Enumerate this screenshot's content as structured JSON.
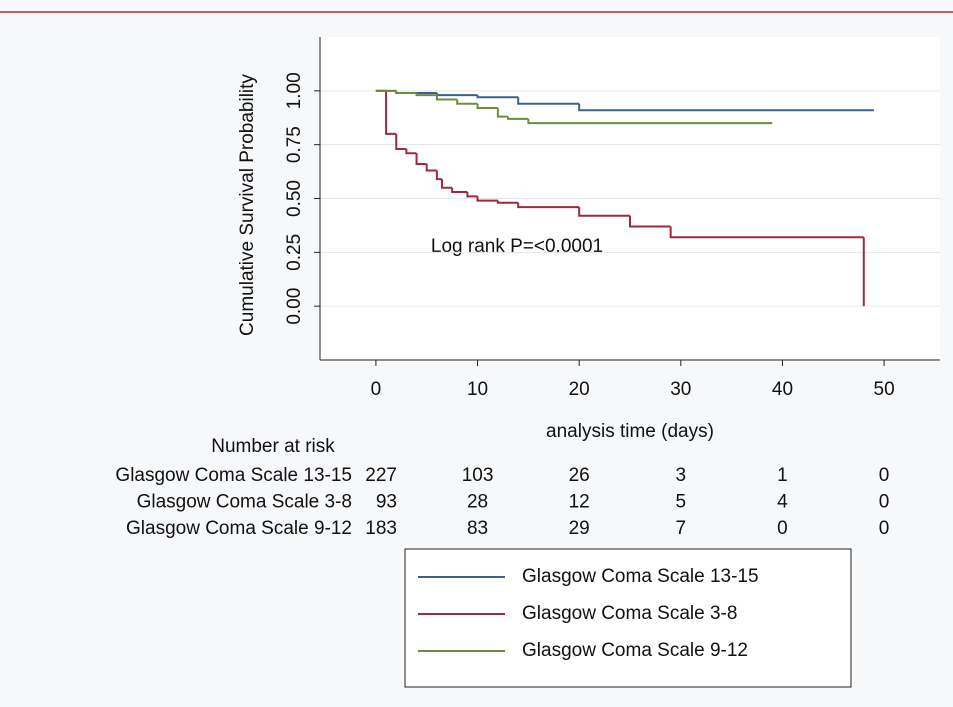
{
  "chart_data": {
    "type": "line",
    "step": true,
    "y_label": "Cumulative Survival Probability",
    "x_label": "analysis time (days)",
    "annotation": "Log rank P=<0.0001",
    "xlim": [
      -5.5,
      55.5
    ],
    "xticks": [
      0,
      10,
      20,
      30,
      40,
      50
    ],
    "ylim": [
      -0.25,
      1.25
    ],
    "yticks": [
      {
        "value": 0,
        "label": "0.00"
      },
      {
        "value": 0.25,
        "label": "0.25"
      },
      {
        "value": 0.5,
        "label": "0.50"
      },
      {
        "value": 0.75,
        "label": "0.75"
      },
      {
        "value": 1,
        "label": "1.00"
      }
    ],
    "grid": true,
    "legend": "bottom",
    "series": [
      {
        "name": "Glasgow Coma Scale 13-15",
        "color": "#3c6090",
        "x": [
          0,
          2,
          6,
          10,
          14,
          20,
          49
        ],
        "values": [
          1,
          0.99,
          0.98,
          0.97,
          0.94,
          0.91,
          0.91
        ]
      },
      {
        "name": "Glasgow Coma Scale 3-8",
        "color": "#a02a3c",
        "x": [
          0,
          1,
          2,
          3,
          4,
          5,
          6,
          6.5,
          7.5,
          9,
          10,
          12,
          14,
          20,
          25,
          29,
          48
        ],
        "values": [
          1,
          0.8,
          0.73,
          0.71,
          0.66,
          0.63,
          0.59,
          0.55,
          0.53,
          0.51,
          0.49,
          0.48,
          0.46,
          0.42,
          0.37,
          0.32,
          0
        ]
      },
      {
        "name": "Glasgow Coma Scale 9-12",
        "color": "#6e8c3c",
        "x": [
          0,
          2,
          4,
          6,
          8,
          10,
          12,
          13,
          15,
          39
        ],
        "values": [
          1,
          0.99,
          0.98,
          0.96,
          0.94,
          0.92,
          0.88,
          0.87,
          0.85,
          0.85
        ]
      }
    ],
    "risk_table": {
      "title": "Number at risk",
      "rows": [
        {
          "label": "Glasgow Coma Scale 13-15",
          "counts": [
            227,
            103,
            26,
            3,
            1,
            0
          ]
        },
        {
          "label": "Glasgow Coma Scale 3-8",
          "counts": [
            93,
            28,
            12,
            5,
            4,
            0
          ]
        },
        {
          "label": "Glasgow Coma Scale 9-12",
          "counts": [
            183,
            83,
            29,
            7,
            0,
            0
          ]
        }
      ]
    }
  }
}
